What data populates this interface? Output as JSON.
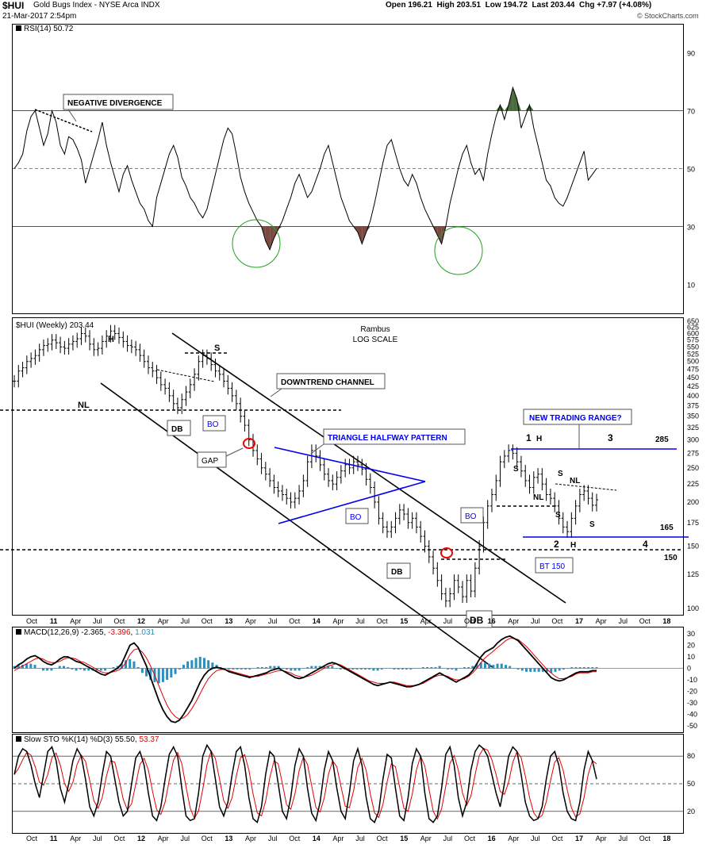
{
  "header": {
    "symbol": "$HUI",
    "name": "Gold Bugs Index - NYSE Arca INDX",
    "datetime": "21-Mar-2017 2:54pm",
    "ohlc": "Open 196.21  High 203.51  Low 194.72  Last 203.44  Chg +7.97 (+4.08%)",
    "watermark": "© StockCharts.com"
  },
  "rsi": {
    "legend": "RSI(14) 50.72",
    "ticks": [
      90,
      70,
      50,
      30,
      10
    ],
    "annotations": {
      "divergence": "NEGATIVE DIVERGENCE"
    },
    "series": [
      50,
      52,
      55,
      63,
      68,
      70,
      64,
      58,
      62,
      70,
      66,
      58,
      55,
      61,
      60,
      57,
      53,
      45,
      50,
      55,
      60,
      66,
      58,
      52,
      47,
      42,
      48,
      51,
      46,
      42,
      38,
      36,
      32,
      30,
      40,
      45,
      50,
      55,
      58,
      54,
      47,
      44,
      40,
      38,
      35,
      33,
      36,
      42,
      48,
      54,
      60,
      64,
      62,
      55,
      47,
      42,
      38,
      35,
      32,
      30,
      25,
      22,
      26,
      29,
      32,
      36,
      40,
      45,
      48,
      44,
      40,
      42,
      46,
      50,
      55,
      58,
      52,
      46,
      40,
      36,
      32,
      30,
      28,
      24,
      28,
      32,
      38,
      45,
      52,
      58,
      60,
      55,
      50,
      46,
      44,
      48,
      45,
      40,
      36,
      33,
      30,
      27,
      24,
      30,
      38,
      44,
      50,
      55,
      58,
      52,
      48,
      50,
      46,
      55,
      62,
      68,
      72,
      67,
      72,
      78,
      74,
      64,
      68,
      72,
      64,
      58,
      52,
      46,
      44,
      40,
      38,
      37,
      40,
      44,
      48,
      52,
      56,
      46,
      48,
      50
    ]
  },
  "price": {
    "legend": "$HUI (Weekly) 203.44",
    "yticks": [
      650,
      625,
      600,
      575,
      550,
      525,
      500,
      475,
      450,
      425,
      400,
      375,
      350,
      325,
      300,
      275,
      250,
      225,
      200,
      175,
      150,
      125,
      100
    ],
    "xticks": [
      "Oct",
      "11",
      "Apr",
      "Jul",
      "Oct",
      "12",
      "Apr",
      "Jul",
      "Oct",
      "13",
      "Apr",
      "Jul",
      "Oct",
      "14",
      "Apr",
      "Jul",
      "Oct",
      "15",
      "Apr",
      "Jul",
      "Oct",
      "16",
      "Apr",
      "Jul",
      "Oct",
      "17",
      "Apr",
      "Jul",
      "Oct",
      "18"
    ],
    "title_lines": [
      "Rambus",
      "LOG SCALE"
    ],
    "labels": {
      "H": "H",
      "S": "S",
      "NL": "NL",
      "DB": "DB",
      "BO": "BO",
      "GAP": "GAP",
      "downtrend": "DOWNTREND CHANNEL",
      "triangle": "TRIANGLE HALFWAY PATTERN",
      "new_range": "NEW TRADING RANGE?",
      "bt150": "BT 150",
      "n1": "1",
      "n2": "2",
      "n3": "3",
      "n4": "4",
      "v285": "285",
      "v165": "165",
      "v150": "150"
    },
    "closes": [
      440,
      470,
      480,
      500,
      510,
      520,
      540,
      555,
      560,
      575,
      565,
      550,
      545,
      560,
      570,
      580,
      600,
      590,
      560,
      540,
      545,
      570,
      590,
      610,
      600,
      585,
      570,
      555,
      550,
      540,
      520,
      500,
      480,
      470,
      450,
      430,
      420,
      400,
      380,
      370,
      390,
      410,
      430,
      460,
      500,
      520,
      510,
      490,
      470,
      460,
      440,
      420,
      400,
      380,
      350,
      330,
      300,
      280,
      265,
      250,
      240,
      230,
      220,
      215,
      210,
      205,
      200,
      205,
      215,
      230,
      260,
      280,
      270,
      255,
      240,
      230,
      225,
      235,
      245,
      255,
      250,
      260,
      255,
      248,
      232,
      220,
      200,
      180,
      170,
      165,
      170,
      180,
      190,
      185,
      175,
      180,
      170,
      160,
      150,
      140,
      130,
      120,
      110,
      105,
      110,
      120,
      115,
      108,
      120,
      112,
      130,
      150,
      175,
      195,
      210,
      230,
      260,
      270,
      280,
      275,
      260,
      245,
      230,
      220,
      235,
      240,
      225,
      210,
      205,
      195,
      180,
      170,
      165,
      180,
      195,
      210,
      215,
      205,
      196,
      203
    ]
  },
  "macd": {
    "legend_a": "MACD(12,26,9)",
    "legend_b": "-2.365",
    "legend_c": "-3.396",
    "legend_d": "1.031",
    "ticks": [
      30,
      20,
      10,
      0,
      -10,
      -20,
      -30,
      -40,
      -50
    ],
    "macd": [
      0,
      3,
      5,
      8,
      10,
      11,
      9,
      6,
      4,
      3,
      5,
      8,
      10,
      10,
      8,
      6,
      5,
      3,
      1,
      -1,
      -3,
      -5,
      -6,
      -4,
      -2,
      0,
      4,
      12,
      20,
      22,
      18,
      10,
      2,
      -8,
      -18,
      -28,
      -36,
      -42,
      -46,
      -47,
      -45,
      -40,
      -34,
      -28,
      -20,
      -12,
      -6,
      -2,
      0,
      1,
      0,
      -1,
      -3,
      -4,
      -5,
      -6,
      -7,
      -8,
      -7,
      -6,
      -5,
      -4,
      -2,
      -1,
      0,
      -2,
      -4,
      -6,
      -8,
      -9,
      -8,
      -6,
      -4,
      -2,
      0,
      2,
      4,
      5,
      4,
      2,
      0,
      -2,
      -4,
      -6,
      -8,
      -10,
      -12,
      -14,
      -15,
      -14,
      -13,
      -12,
      -13,
      -14,
      -15,
      -16,
      -16,
      -15,
      -14,
      -12,
      -10,
      -8,
      -6,
      -4,
      -6,
      -8,
      -10,
      -12,
      -10,
      -8,
      -6,
      -2,
      4,
      10,
      14,
      16,
      18,
      22,
      25,
      27,
      28,
      26,
      24,
      20,
      16,
      12,
      8,
      4,
      0,
      -4,
      -8,
      -10,
      -11,
      -10,
      -8,
      -6,
      -4,
      -3,
      -3,
      -3,
      -2,
      -2
    ],
    "signal": [
      -2,
      0,
      2,
      4,
      6,
      8,
      9,
      8,
      6,
      5,
      5,
      6,
      8,
      9,
      9,
      8,
      6,
      5,
      3,
      1,
      -1,
      -3,
      -4,
      -4,
      -3,
      -2,
      0,
      5,
      12,
      16,
      17,
      14,
      9,
      2,
      -6,
      -15,
      -24,
      -32,
      -38,
      -42,
      -44,
      -43,
      -40,
      -35,
      -29,
      -22,
      -15,
      -9,
      -5,
      -2,
      -1,
      -1,
      -2,
      -3,
      -4,
      -5,
      -6,
      -7,
      -7,
      -7,
      -6,
      -5,
      -4,
      -3,
      -2,
      -2,
      -3,
      -4,
      -6,
      -7,
      -8,
      -7,
      -6,
      -4,
      -2,
      0,
      2,
      3,
      4,
      3,
      1,
      -1,
      -3,
      -5,
      -7,
      -9,
      -11,
      -12,
      -13,
      -13,
      -13,
      -12,
      -12,
      -13,
      -14,
      -15,
      -15,
      -15,
      -14,
      -13,
      -11,
      -9,
      -7,
      -6,
      -6,
      -7,
      -9,
      -10,
      -10,
      -9,
      -7,
      -4,
      0,
      5,
      9,
      12,
      15,
      18,
      21,
      24,
      26,
      26,
      25,
      22,
      19,
      15,
      11,
      7,
      3,
      -1,
      -4,
      -7,
      -9,
      -9,
      -8,
      -7,
      -5,
      -4,
      -4,
      -4,
      -3,
      -3
    ]
  },
  "sto": {
    "legend_a": "Slow STO %K(14) %D(3)",
    "legend_b": "55.50",
    "legend_c": "53.37",
    "ticks": [
      80,
      50,
      20
    ],
    "k": [
      60,
      80,
      88,
      85,
      70,
      50,
      35,
      60,
      85,
      90,
      75,
      45,
      30,
      50,
      75,
      88,
      80,
      55,
      25,
      15,
      30,
      60,
      85,
      80,
      55,
      30,
      15,
      20,
      50,
      78,
      85,
      70,
      40,
      15,
      10,
      25,
      55,
      82,
      90,
      80,
      45,
      15,
      10,
      12,
      40,
      80,
      92,
      85,
      55,
      25,
      15,
      30,
      60,
      85,
      90,
      70,
      35,
      12,
      8,
      25,
      60,
      85,
      80,
      50,
      20,
      12,
      35,
      70,
      88,
      80,
      45,
      18,
      10,
      30,
      65,
      85,
      75,
      45,
      20,
      12,
      40,
      75,
      88,
      70,
      35,
      12,
      8,
      20,
      55,
      82,
      78,
      45,
      15,
      10,
      35,
      72,
      88,
      80,
      40,
      12,
      8,
      15,
      45,
      82,
      90,
      70,
      35,
      15,
      30,
      65,
      85,
      92,
      88,
      80,
      60,
      40,
      25,
      50,
      80,
      90,
      85,
      60,
      30,
      15,
      10,
      12,
      25,
      55,
      80,
      85,
      70,
      40,
      20,
      12,
      10,
      30,
      65,
      85,
      75,
      55
    ]
  },
  "colors": {
    "rsi_over": "#4a6b3a",
    "rsi_under": "#7a4a40",
    "channel_blue": "#0000ee",
    "macd_hist": "#2a8fc0",
    "signal_red": "#e00000",
    "circle_green": "#22a022",
    "gap_red": "#ee0000"
  }
}
